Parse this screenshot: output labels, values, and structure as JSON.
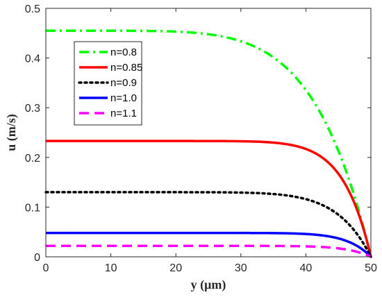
{
  "chart_data": {
    "type": "line",
    "xlabel": "y (μm)",
    "ylabel": "u (m/s)",
    "xlim": [
      0,
      50
    ],
    "ylim": [
      0,
      0.5
    ],
    "xticks": [
      0,
      10,
      20,
      30,
      40,
      50
    ],
    "yticks": [
      0,
      0.1,
      0.2,
      0.3,
      0.4,
      0.5
    ],
    "grid": false,
    "legend_position": "top-left",
    "series": [
      {
        "name": "n=0.8",
        "color": "#00ff00",
        "dash": "dashdot",
        "umax": 0.455,
        "sharpness": 6
      },
      {
        "name": "n=0.85",
        "color": "#ff0000",
        "dash": "solid",
        "umax": 0.233,
        "sharpness": 12
      },
      {
        "name": "n=0.9",
        "color": "#000000",
        "dash": "dotted",
        "umax": 0.13,
        "sharpness": 10
      },
      {
        "name": "n=1.0",
        "color": "#0000ff",
        "dash": "solid",
        "umax": 0.048,
        "sharpness": 14
      },
      {
        "name": "n=1.1",
        "color": "#ff00ff",
        "dash": "dashed",
        "umax": 0.022,
        "sharpness": 14
      }
    ]
  }
}
